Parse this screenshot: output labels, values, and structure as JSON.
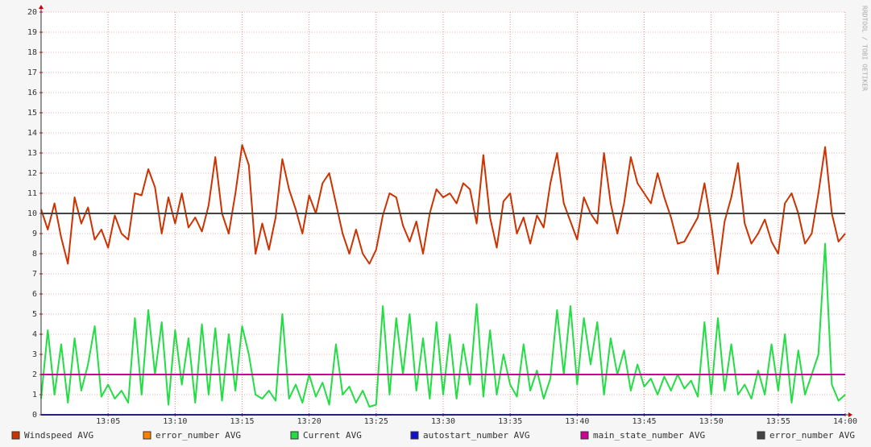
{
  "chart_data": {
    "type": "line",
    "watermark": "RRDTOOL / TOBI OETIKER",
    "xlim": [
      0,
      60
    ],
    "xticks": [
      {
        "value": 5,
        "label": "13:05"
      },
      {
        "value": 10,
        "label": "13:10"
      },
      {
        "value": 15,
        "label": "13:15"
      },
      {
        "value": 20,
        "label": "13:20"
      },
      {
        "value": 25,
        "label": "13:25"
      },
      {
        "value": 30,
        "label": "13:30"
      },
      {
        "value": 35,
        "label": "13:35"
      },
      {
        "value": 40,
        "label": "13:40"
      },
      {
        "value": 45,
        "label": "13:45"
      },
      {
        "value": 50,
        "label": "13:50"
      },
      {
        "value": 55,
        "label": "13:55"
      },
      {
        "value": 60,
        "label": "14:00"
      }
    ],
    "ylim": [
      0,
      20
    ],
    "yticks": [
      0,
      1,
      2,
      3,
      4,
      5,
      6,
      7,
      8,
      9,
      10,
      11,
      12,
      13,
      14,
      15,
      16,
      17,
      18,
      19,
      20
    ],
    "grid": true,
    "series": [
      {
        "name": "Windspeed AVG",
        "color": "#cc3300",
        "x": [
          0,
          0.5,
          1,
          1.5,
          2,
          2.5,
          3,
          3.5,
          4,
          4.5,
          5,
          5.5,
          6,
          6.5,
          7,
          7.5,
          8,
          8.5,
          9,
          9.5,
          10,
          10.5,
          11,
          11.5,
          12,
          12.5,
          13,
          13.5,
          14,
          14.5,
          15,
          15.5,
          16,
          16.5,
          17,
          17.5,
          18,
          18.5,
          19,
          19.5,
          20,
          20.5,
          21,
          21.5,
          22,
          22.5,
          23,
          23.5,
          24,
          24.5,
          25,
          25.5,
          26,
          26.5,
          27,
          27.5,
          28,
          28.5,
          29,
          29.5,
          30,
          30.5,
          31,
          31.5,
          32,
          32.5,
          33,
          33.5,
          34,
          34.5,
          35,
          35.5,
          36,
          36.5,
          37,
          37.5,
          38,
          38.5,
          39,
          39.5,
          40,
          40.5,
          41,
          41.5,
          42,
          42.5,
          43,
          43.5,
          44,
          44.5,
          45,
          45.5,
          46,
          46.5,
          47,
          47.5,
          48,
          48.5,
          49,
          49.5,
          50,
          50.5,
          51,
          51.5,
          52,
          52.5,
          53,
          53.5,
          54,
          54.5,
          55,
          55.5,
          56,
          56.5,
          57,
          57.5,
          58,
          58.5,
          59,
          59.5,
          60
        ],
        "values": [
          10.2,
          9.2,
          10.5,
          8.8,
          7.5,
          10.8,
          9.5,
          10.3,
          8.7,
          9.2,
          8.3,
          9.9,
          9.0,
          8.7,
          11.0,
          10.9,
          12.2,
          11.3,
          9.0,
          10.8,
          9.5,
          11.0,
          9.3,
          9.8,
          9.1,
          10.4,
          12.8,
          10.0,
          9.0,
          11.0,
          13.4,
          12.4,
          8.0,
          9.5,
          8.2,
          9.8,
          12.7,
          11.2,
          10.2,
          9.0,
          10.9,
          10.0,
          11.5,
          12.0,
          10.5,
          9.0,
          8.0,
          9.2,
          8.0,
          7.5,
          8.2,
          9.9,
          11.0,
          10.8,
          9.4,
          8.6,
          9.6,
          8.0,
          10.0,
          11.2,
          10.8,
          11.0,
          10.5,
          11.5,
          11.2,
          9.5,
          12.9,
          9.8,
          8.3,
          10.6,
          11.0,
          9.0,
          9.8,
          8.5,
          9.9,
          9.3,
          11.5,
          13.0,
          10.5,
          9.6,
          8.7,
          10.8,
          10.0,
          9.5,
          13.0,
          10.5,
          9.0,
          10.5,
          12.8,
          11.5,
          11.0,
          10.5,
          12.0,
          10.8,
          9.8,
          8.5,
          8.6,
          9.2,
          9.8,
          11.5,
          9.5,
          7.0,
          9.6,
          10.8,
          12.5,
          9.5,
          8.5,
          9.0,
          9.7,
          8.6,
          8.0,
          10.5,
          11.0,
          10.0,
          8.5,
          9.0,
          11.0,
          13.3,
          10.0,
          8.6,
          9.0
        ]
      },
      {
        "name": "error_number AVG",
        "color": "#ff8000",
        "x": [
          0,
          60
        ],
        "values": [
          0,
          0
        ]
      },
      {
        "name": "Current AVG",
        "color": "#22dd44",
        "x": [
          0,
          0.5,
          1,
          1.5,
          2,
          2.5,
          3,
          3.5,
          4,
          4.5,
          5,
          5.5,
          6,
          6.5,
          7,
          7.5,
          8,
          8.5,
          9,
          9.5,
          10,
          10.5,
          11,
          11.5,
          12,
          12.5,
          13,
          13.5,
          14,
          14.5,
          15,
          15.5,
          16,
          16.5,
          17,
          17.5,
          18,
          18.5,
          19,
          19.5,
          20,
          20.5,
          21,
          21.5,
          22,
          22.5,
          23,
          23.5,
          24,
          24.5,
          25,
          25.5,
          26,
          26.5,
          27,
          27.5,
          28,
          28.5,
          29,
          29.5,
          30,
          30.5,
          31,
          31.5,
          32,
          32.5,
          33,
          33.5,
          34,
          34.5,
          35,
          35.5,
          36,
          36.5,
          37,
          37.5,
          38,
          38.5,
          39,
          39.5,
          40,
          40.5,
          41,
          41.5,
          42,
          42.5,
          43,
          43.5,
          44,
          44.5,
          45,
          45.5,
          46,
          46.5,
          47,
          47.5,
          48,
          48.5,
          49,
          49.5,
          50,
          50.5,
          51,
          51.5,
          52,
          52.5,
          53,
          53.5,
          54,
          54.5,
          55,
          55.5,
          56,
          56.5,
          57,
          57.5,
          58,
          58.5,
          59,
          59.5,
          60
        ],
        "values": [
          0.8,
          4.2,
          1.0,
          3.5,
          0.6,
          3.8,
          1.2,
          2.5,
          4.4,
          0.9,
          1.5,
          0.8,
          1.2,
          0.6,
          4.8,
          1.0,
          5.2,
          2.0,
          4.6,
          0.5,
          4.2,
          1.5,
          3.8,
          0.6,
          4.5,
          1.0,
          4.3,
          0.7,
          4.0,
          1.2,
          4.4,
          3.0,
          1.0,
          0.8,
          1.2,
          0.7,
          5.0,
          0.8,
          1.5,
          0.6,
          2.0,
          0.9,
          1.6,
          0.5,
          3.5,
          1.0,
          1.4,
          0.6,
          1.2,
          0.4,
          0.5,
          5.4,
          1.0,
          4.8,
          2.0,
          5.0,
          1.2,
          3.8,
          0.8,
          4.6,
          1.0,
          4.0,
          0.8,
          3.5,
          1.5,
          5.5,
          0.9,
          4.2,
          1.0,
          3.0,
          1.5,
          0.9,
          3.5,
          1.2,
          2.2,
          0.8,
          1.8,
          5.2,
          2.0,
          5.4,
          1.5,
          4.8,
          2.5,
          4.6,
          1.0,
          3.8,
          2.0,
          3.2,
          1.2,
          2.5,
          1.4,
          1.8,
          1.0,
          1.9,
          1.2,
          2.0,
          1.3,
          1.7,
          0.9,
          4.6,
          1.0,
          4.8,
          1.2,
          3.5,
          1.0,
          1.5,
          0.8,
          2.2,
          1.0,
          3.5,
          1.2,
          4.0,
          0.6,
          3.2,
          1.0,
          2.0,
          3.0,
          8.5,
          1.5,
          0.7,
          1.0
        ]
      },
      {
        "name": "autostart_number AVG",
        "color": "#1111cc",
        "x": [
          0,
          60
        ],
        "values": [
          0,
          0
        ]
      },
      {
        "name": "main_state_number AVG",
        "color": "#cc0099",
        "x": [
          0,
          60
        ],
        "values": [
          2,
          2
        ]
      },
      {
        "name": "error_number AVG",
        "color": "#444444",
        "x": [
          0,
          60
        ],
        "values": [
          10,
          10
        ]
      }
    ]
  }
}
